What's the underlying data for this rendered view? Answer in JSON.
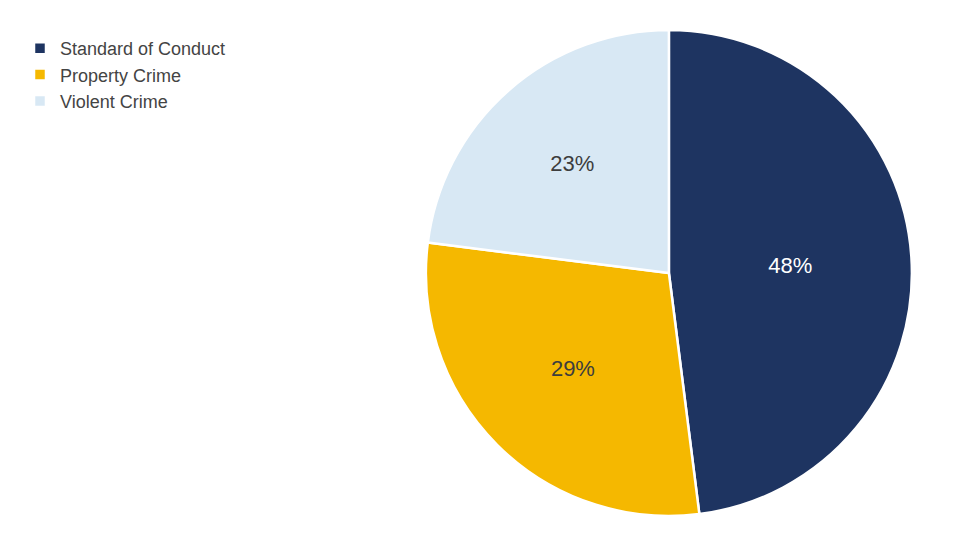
{
  "chart_data": {
    "type": "pie",
    "categories": [
      "Standard of Conduct",
      "Property Crime",
      "Violent Crime"
    ],
    "values": [
      48,
      29,
      23
    ],
    "value_labels": [
      "48%",
      "29%",
      "23%"
    ],
    "colors": [
      "#1e3461",
      "#f5b800",
      "#d8e8f4"
    ],
    "data_labels": true,
    "legend": "upper left"
  }
}
